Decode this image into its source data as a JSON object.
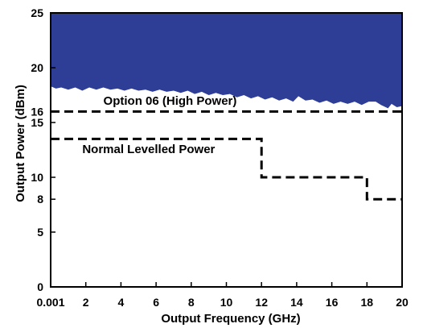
{
  "chart_data": {
    "type": "area",
    "xlabel": "Output Frequency (GHz)",
    "ylabel": "Output Power (dBm)",
    "xlim": [
      0,
      20
    ],
    "ylim": [
      0,
      25
    ],
    "x_ticks": [
      {
        "value": 0,
        "label": "0.001"
      },
      {
        "value": 2,
        "label": "2"
      },
      {
        "value": 4,
        "label": "4"
      },
      {
        "value": 6,
        "label": "6"
      },
      {
        "value": 8,
        "label": "8"
      },
      {
        "value": 10,
        "label": "10"
      },
      {
        "value": 12,
        "label": "12"
      },
      {
        "value": 14,
        "label": "14"
      },
      {
        "value": 16,
        "label": "16"
      },
      {
        "value": 18,
        "label": "18"
      },
      {
        "value": 20,
        "label": "20"
      }
    ],
    "y_ticks": [
      {
        "value": 0,
        "label": "0"
      },
      {
        "value": 5,
        "label": "5"
      },
      {
        "value": 8,
        "label": "8"
      },
      {
        "value": 10,
        "label": "10"
      },
      {
        "value": 15,
        "label": "15"
      },
      {
        "value": 16,
        "label": "16"
      },
      {
        "value": 20,
        "label": "20"
      },
      {
        "value": 25,
        "label": "25"
      }
    ],
    "fill_color": "#2e3d96",
    "area_boundary": [
      [
        0,
        18.3
      ],
      [
        0.3,
        18.1
      ],
      [
        0.6,
        18.2
      ],
      [
        1.0,
        18.0
      ],
      [
        1.4,
        18.2
      ],
      [
        1.8,
        17.9
      ],
      [
        2.2,
        18.2
      ],
      [
        2.6,
        18.0
      ],
      [
        3.0,
        18.2
      ],
      [
        3.4,
        18.0
      ],
      [
        3.8,
        18.1
      ],
      [
        4.2,
        17.9
      ],
      [
        4.6,
        18.1
      ],
      [
        5.0,
        17.9
      ],
      [
        5.4,
        18.0
      ],
      [
        5.8,
        17.8
      ],
      [
        6.2,
        18.0
      ],
      [
        6.6,
        17.8
      ],
      [
        7.0,
        17.9
      ],
      [
        7.4,
        17.7
      ],
      [
        7.8,
        17.9
      ],
      [
        8.2,
        17.6
      ],
      [
        8.6,
        17.8
      ],
      [
        9.0,
        17.5
      ],
      [
        9.4,
        17.7
      ],
      [
        9.8,
        17.5
      ],
      [
        10.2,
        17.6
      ],
      [
        10.6,
        17.3
      ],
      [
        11.0,
        17.5
      ],
      [
        11.4,
        17.2
      ],
      [
        11.8,
        17.4
      ],
      [
        12.2,
        17.1
      ],
      [
        12.6,
        17.3
      ],
      [
        13.0,
        17.0
      ],
      [
        13.4,
        17.2
      ],
      [
        13.8,
        16.9
      ],
      [
        14.1,
        17.4
      ],
      [
        14.5,
        17.0
      ],
      [
        14.9,
        17.1
      ],
      [
        15.3,
        16.8
      ],
      [
        15.7,
        17.0
      ],
      [
        16.1,
        16.7
      ],
      [
        16.5,
        16.9
      ],
      [
        16.9,
        16.7
      ],
      [
        17.3,
        16.9
      ],
      [
        17.7,
        16.6
      ],
      [
        18.1,
        16.9
      ],
      [
        18.5,
        16.9
      ],
      [
        18.8,
        16.6
      ],
      [
        19.2,
        16.3
      ],
      [
        19.4,
        16.7
      ],
      [
        19.7,
        16.4
      ],
      [
        20.0,
        16.5
      ]
    ],
    "series": [
      {
        "name": "Option 06 (High Power)",
        "style": "dashed",
        "points": [
          [
            0,
            16
          ],
          [
            20,
            16
          ]
        ]
      },
      {
        "name": "Normal Levelled Power",
        "style": "dashed",
        "points": [
          [
            0,
            13.5
          ],
          [
            12,
            13.5
          ],
          [
            12,
            10
          ],
          [
            18,
            10
          ],
          [
            18,
            8
          ],
          [
            20,
            8
          ]
        ]
      }
    ],
    "annotations": [
      {
        "text": "Option 06 (High Power)",
        "x": 3.0,
        "y": 16.6
      },
      {
        "text": "Normal Levelled Power",
        "x": 1.8,
        "y": 12.2
      }
    ]
  }
}
